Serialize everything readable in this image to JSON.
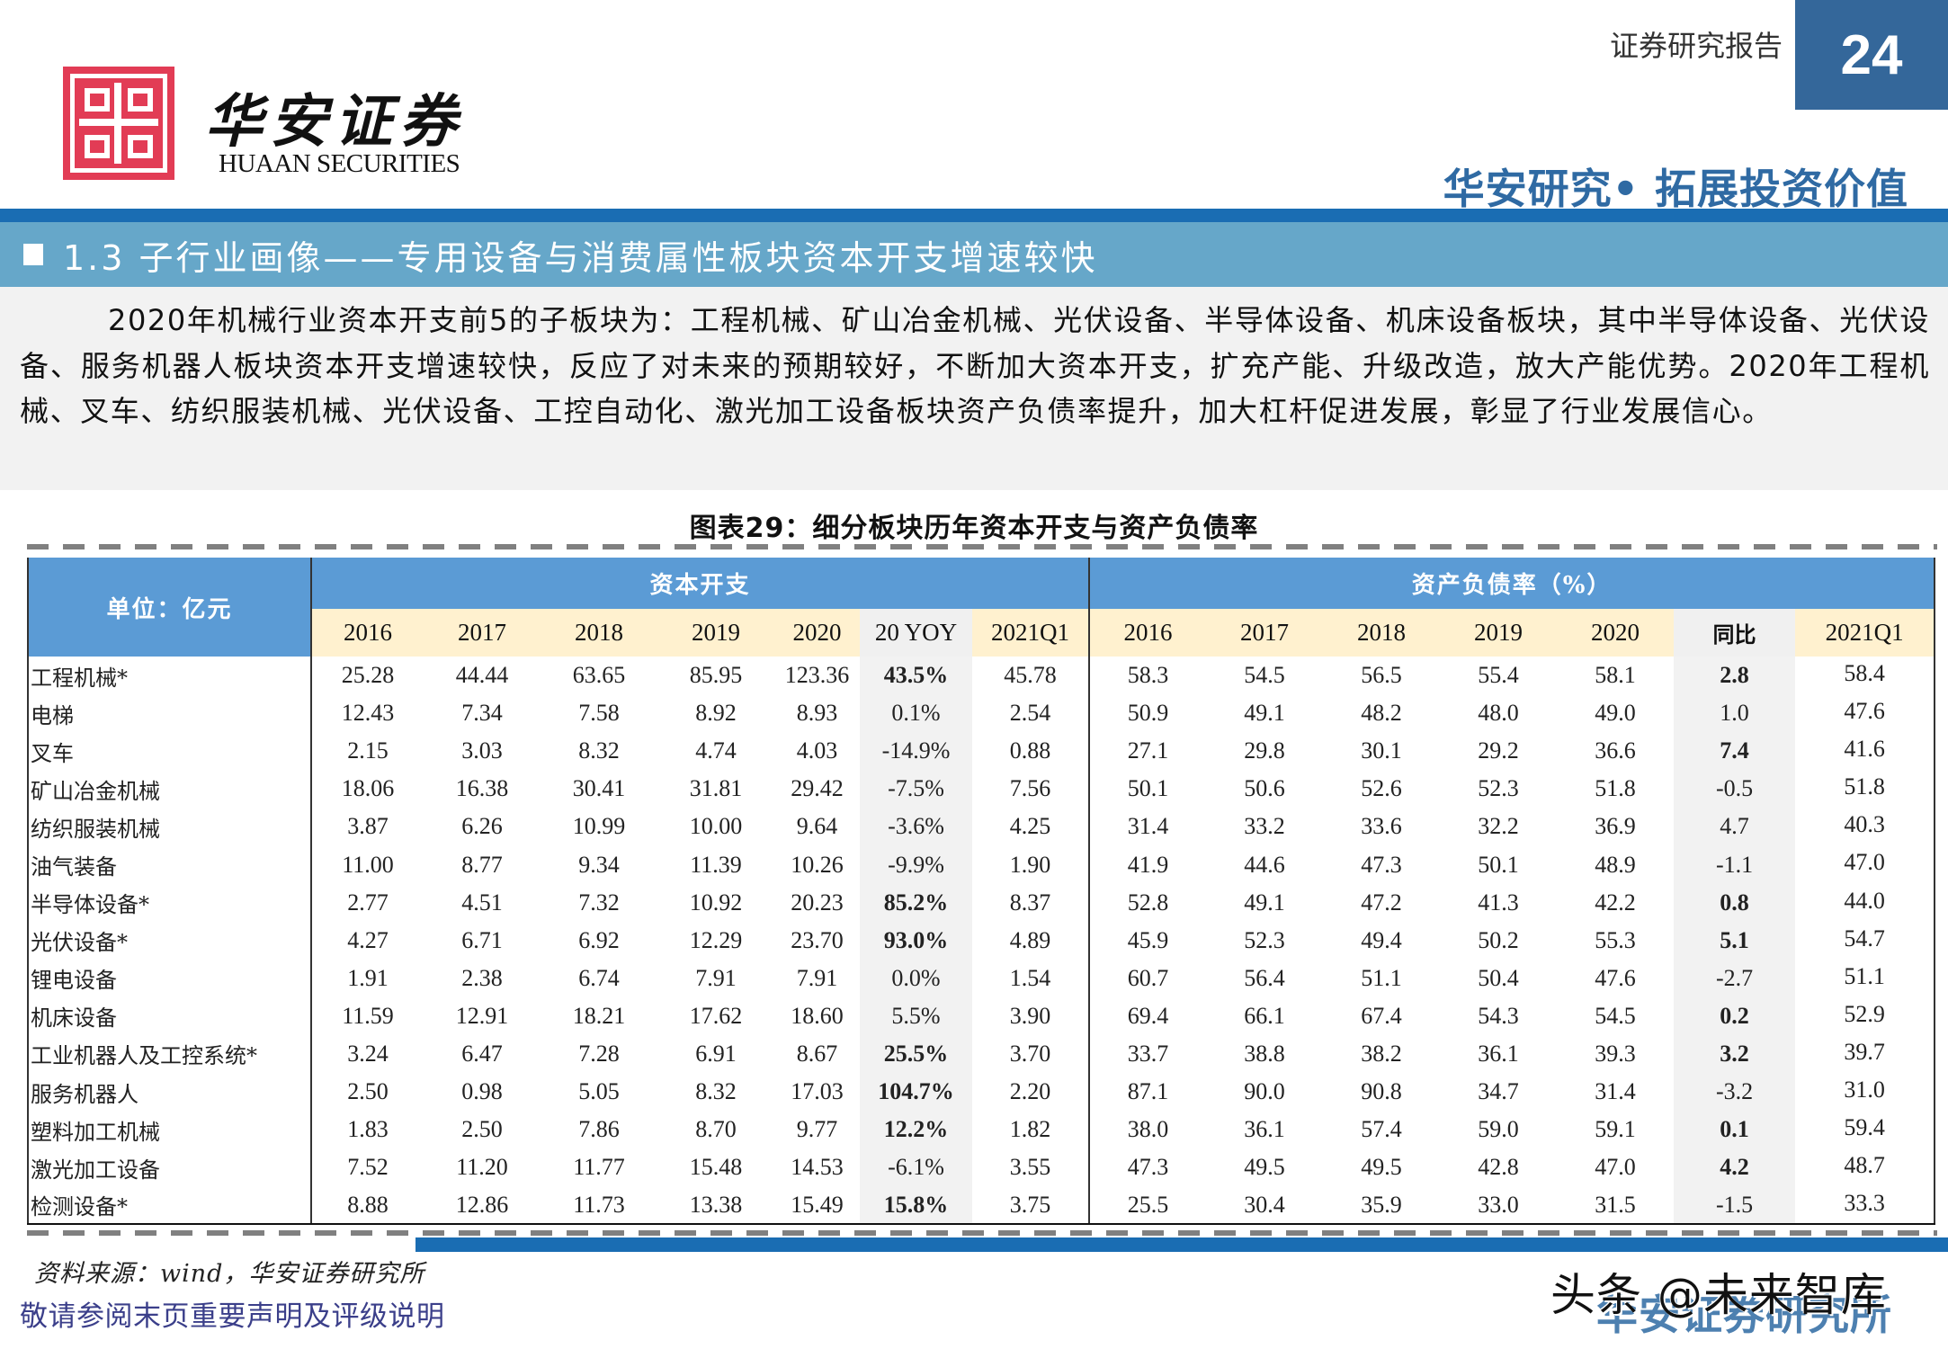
{
  "header": {
    "logo_cn": "华安证券",
    "logo_en": "HUAAN SECURITIES",
    "report_label": "证券研究报告",
    "page_number": "24",
    "slogan": "华安研究• 拓展投资价值",
    "colors": {
      "brand_red": "#e23c55",
      "brand_blue": "#34679a",
      "slogan_blue": "#2f6aa3",
      "bar_blue": "#1a6db3",
      "band_blue": "#66a7c9"
    }
  },
  "section": {
    "title": "1.3 子行业画像——专用设备与消费属性板块资本开支增速较快"
  },
  "paragraph": "2020年机械行业资本开支前5的子板块为：工程机械、矿山冶金机械、光伏设备、半导体设备、机床设备板块，其中半导体设备、光伏设备、服务机器人板块资本开支增速较快，反应了对未来的预期较好，不断加大资本开支，扩充产能、升级改造，放大产能优势。2020年工程机械、叉车、纺织服装机械、光伏设备、工控自动化、激光加工设备板块资产负债率提升，加大杠杆促进发展，彰显了行业发展信心。",
  "figure": {
    "title": "图表29：细分板块历年资本开支与资产负债率",
    "unit_label": "单位：亿元",
    "group_capex": "资本开支",
    "group_debt": "资产负债率（%）",
    "capex_headers": [
      "2016",
      "2017",
      "2018",
      "2019",
      "2020",
      "20 YOY",
      "2021Q1"
    ],
    "debt_headers": [
      "2016",
      "2017",
      "2018",
      "2019",
      "2020",
      "同比",
      "2021Q1"
    ],
    "rows": [
      {
        "name": "工程机械*",
        "capex": [
          "25.28",
          "44.44",
          "63.65",
          "85.95",
          "123.36",
          "43.5%",
          "45.78"
        ],
        "capex_yoy_bold": true,
        "debt": [
          "58.3",
          "54.5",
          "56.5",
          "55.4",
          "58.1",
          "2.8",
          "58.4"
        ],
        "debt_yoy_bold": true
      },
      {
        "name": "电梯",
        "capex": [
          "12.43",
          "7.34",
          "7.58",
          "8.92",
          "8.93",
          "0.1%",
          "2.54"
        ],
        "capex_yoy_bold": false,
        "debt": [
          "50.9",
          "49.1",
          "48.2",
          "48.0",
          "49.0",
          "1.0",
          "47.6"
        ],
        "debt_yoy_bold": false
      },
      {
        "name": "叉车",
        "capex": [
          "2.15",
          "3.03",
          "8.32",
          "4.74",
          "4.03",
          "-14.9%",
          "0.88"
        ],
        "capex_yoy_bold": false,
        "debt": [
          "27.1",
          "29.8",
          "30.1",
          "29.2",
          "36.6",
          "7.4",
          "41.6"
        ],
        "debt_yoy_bold": true
      },
      {
        "name": "矿山冶金机械",
        "capex": [
          "18.06",
          "16.38",
          "30.41",
          "31.81",
          "29.42",
          "-7.5%",
          "7.56"
        ],
        "capex_yoy_bold": false,
        "debt": [
          "50.1",
          "50.6",
          "52.6",
          "52.3",
          "51.8",
          "-0.5",
          "51.8"
        ],
        "debt_yoy_bold": false
      },
      {
        "name": "纺织服装机械",
        "capex": [
          "3.87",
          "6.26",
          "10.99",
          "10.00",
          "9.64",
          "-3.6%",
          "4.25"
        ],
        "capex_yoy_bold": false,
        "debt": [
          "31.4",
          "33.2",
          "33.6",
          "32.2",
          "36.9",
          "4.7",
          "40.3"
        ],
        "debt_yoy_bold": false
      },
      {
        "name": "油气装备",
        "capex": [
          "11.00",
          "8.77",
          "9.34",
          "11.39",
          "10.26",
          "-9.9%",
          "1.90"
        ],
        "capex_yoy_bold": false,
        "debt": [
          "41.9",
          "44.6",
          "47.3",
          "50.1",
          "48.9",
          "-1.1",
          "47.0"
        ],
        "debt_yoy_bold": false
      },
      {
        "name": "半导体设备*",
        "capex": [
          "2.77",
          "4.51",
          "7.32",
          "10.92",
          "20.23",
          "85.2%",
          "8.37"
        ],
        "capex_yoy_bold": true,
        "debt": [
          "52.8",
          "49.1",
          "47.2",
          "41.3",
          "42.2",
          "0.8",
          "44.0"
        ],
        "debt_yoy_bold": true
      },
      {
        "name": "光伏设备*",
        "capex": [
          "4.27",
          "6.71",
          "6.92",
          "12.29",
          "23.70",
          "93.0%",
          "4.89"
        ],
        "capex_yoy_bold": true,
        "debt": [
          "45.9",
          "52.3",
          "49.4",
          "50.2",
          "55.3",
          "5.1",
          "54.7"
        ],
        "debt_yoy_bold": true
      },
      {
        "name": "锂电设备",
        "capex": [
          "1.91",
          "2.38",
          "6.74",
          "7.91",
          "7.91",
          "0.0%",
          "1.54"
        ],
        "capex_yoy_bold": false,
        "debt": [
          "60.7",
          "56.4",
          "51.1",
          "50.4",
          "47.6",
          "-2.7",
          "51.1"
        ],
        "debt_yoy_bold": false
      },
      {
        "name": "机床设备",
        "capex": [
          "11.59",
          "12.91",
          "18.21",
          "17.62",
          "18.60",
          "5.5%",
          "3.90"
        ],
        "capex_yoy_bold": false,
        "debt": [
          "69.4",
          "66.1",
          "67.4",
          "54.3",
          "54.5",
          "0.2",
          "52.9"
        ],
        "debt_yoy_bold": true
      },
      {
        "name": "工业机器人及工控系统*",
        "capex": [
          "3.24",
          "6.47",
          "7.28",
          "6.91",
          "8.67",
          "25.5%",
          "3.70"
        ],
        "capex_yoy_bold": true,
        "debt": [
          "33.7",
          "38.8",
          "38.2",
          "36.1",
          "39.3",
          "3.2",
          "39.7"
        ],
        "debt_yoy_bold": true
      },
      {
        "name": "服务机器人",
        "capex": [
          "2.50",
          "0.98",
          "5.05",
          "8.32",
          "17.03",
          "104.7%",
          "2.20"
        ],
        "capex_yoy_bold": true,
        "debt": [
          "87.1",
          "90.0",
          "90.8",
          "34.7",
          "31.4",
          "-3.2",
          "31.0"
        ],
        "debt_yoy_bold": false
      },
      {
        "name": "塑料加工机械",
        "capex": [
          "1.83",
          "2.50",
          "7.86",
          "8.70",
          "9.77",
          "12.2%",
          "1.82"
        ],
        "capex_yoy_bold": true,
        "debt": [
          "38.0",
          "36.1",
          "57.4",
          "59.0",
          "59.1",
          "0.1",
          "59.4"
        ],
        "debt_yoy_bold": true
      },
      {
        "name": "激光加工设备",
        "capex": [
          "7.52",
          "11.20",
          "11.77",
          "15.48",
          "14.53",
          "-6.1%",
          "3.55"
        ],
        "capex_yoy_bold": false,
        "debt": [
          "47.3",
          "49.5",
          "49.5",
          "42.8",
          "47.0",
          "4.2",
          "48.7"
        ],
        "debt_yoy_bold": true
      },
      {
        "name": "检测设备*",
        "capex": [
          "8.88",
          "12.86",
          "11.73",
          "13.38",
          "15.49",
          "15.8%",
          "3.75"
        ],
        "capex_yoy_bold": true,
        "debt": [
          "25.5",
          "30.4",
          "35.9",
          "33.0",
          "31.5",
          "-1.5",
          "33.3"
        ],
        "debt_yoy_bold": false
      }
    ],
    "source": "资料来源：wind，华安证券研究所"
  },
  "footer": {
    "disclaimer": "敬请参阅末页重要声明及评级说明",
    "brand": "华安证券研究所",
    "watermark": "头条 @未来智库"
  }
}
